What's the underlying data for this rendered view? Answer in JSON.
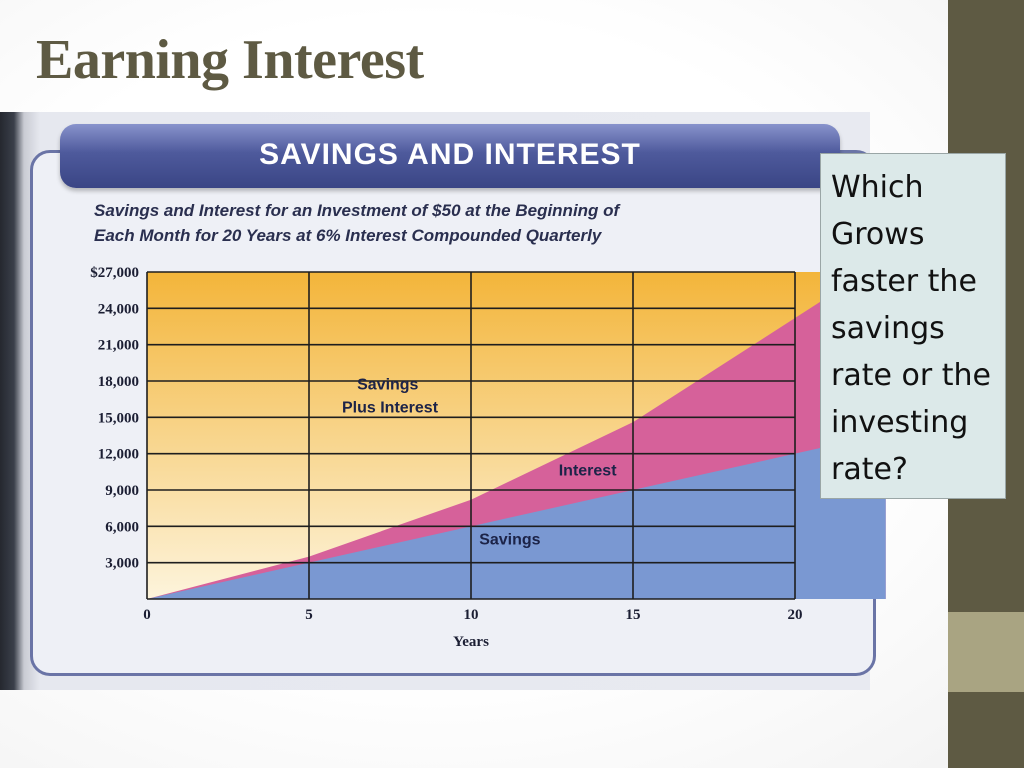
{
  "slide": {
    "title": "Earning Interest",
    "callout": "Which Grows faster the savings rate or the investing rate?"
  },
  "colors": {
    "side_bar_dark": "#5e5a43",
    "side_bar_light": "#a9a482",
    "title": "#5e5a43",
    "banner": "#4e5a9c",
    "plot_top": "#f3b53a",
    "plot_bottom": "#fdf4dc",
    "interest_area": "#d6619a",
    "savings_area": "#7a98d2"
  },
  "chart_data": {
    "type": "area",
    "title": "SAVINGS AND INTEREST",
    "subtitle_line1": "Savings and Interest for an Investment of $50 at the Beginning of",
    "subtitle_line2": "Each Month for 20 Years at 6% Interest Compounded Quarterly",
    "xlabel": "Years",
    "ylabel": "",
    "x_ticks": [
      "0",
      "5",
      "10",
      "15",
      "20"
    ],
    "y_ticks": [
      "3,000",
      "6,000",
      "9,000",
      "12,000",
      "15,000",
      "18,000",
      "21,000",
      "24,000",
      "$27,000"
    ],
    "xlim": [
      0,
      20
    ],
    "ylim": [
      0,
      27000
    ],
    "grid": true,
    "x": [
      0,
      5,
      10,
      15,
      20
    ],
    "series": [
      {
        "name": "Savings",
        "values": [
          0,
          3000,
          6000,
          9000,
          12000
        ]
      },
      {
        "name": "Savings Plus Interest",
        "values": [
          0,
          3500,
          8200,
          14600,
          23200
        ]
      }
    ],
    "region_labels": {
      "total": [
        "Savings",
        "Plus Interest"
      ],
      "interest": "Interest",
      "savings": "Savings"
    }
  }
}
